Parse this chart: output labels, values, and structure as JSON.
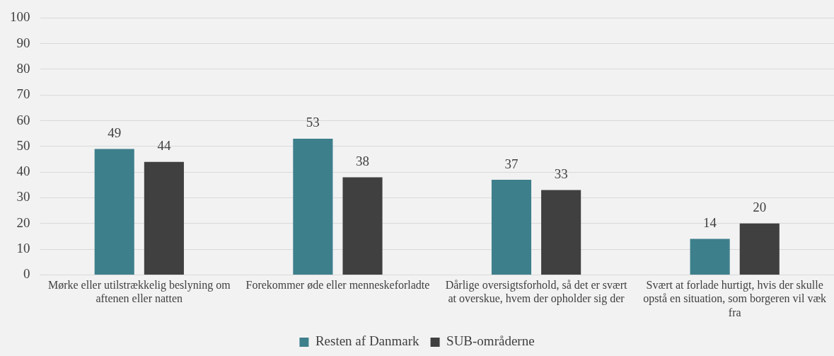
{
  "chart_data": {
    "type": "bar",
    "categories": [
      "Mørke eller utilstrækkelig beslyning om aftenen eller natten",
      "Forekommer øde eller menneskeforladte",
      "Dårlige oversigtsforhold, så det er svært at overskue, hvem der opholder sig der",
      "Svært at forlade hurtigt, hvis der skulle opstå en situation, som borgeren vil væk fra"
    ],
    "series": [
      {
        "name": "Resten af Danmark",
        "color": "#3e7f8c",
        "values": [
          49,
          53,
          37,
          14
        ]
      },
      {
        "name": "SUB-områderne",
        "color": "#404040",
        "values": [
          44,
          38,
          33,
          20
        ]
      }
    ],
    "ylim": [
      0,
      100
    ],
    "yticks": [
      0,
      10,
      20,
      30,
      40,
      50,
      60,
      70,
      80,
      90,
      100
    ],
    "grid": "y",
    "legend": "bottom",
    "data_labels": true
  }
}
